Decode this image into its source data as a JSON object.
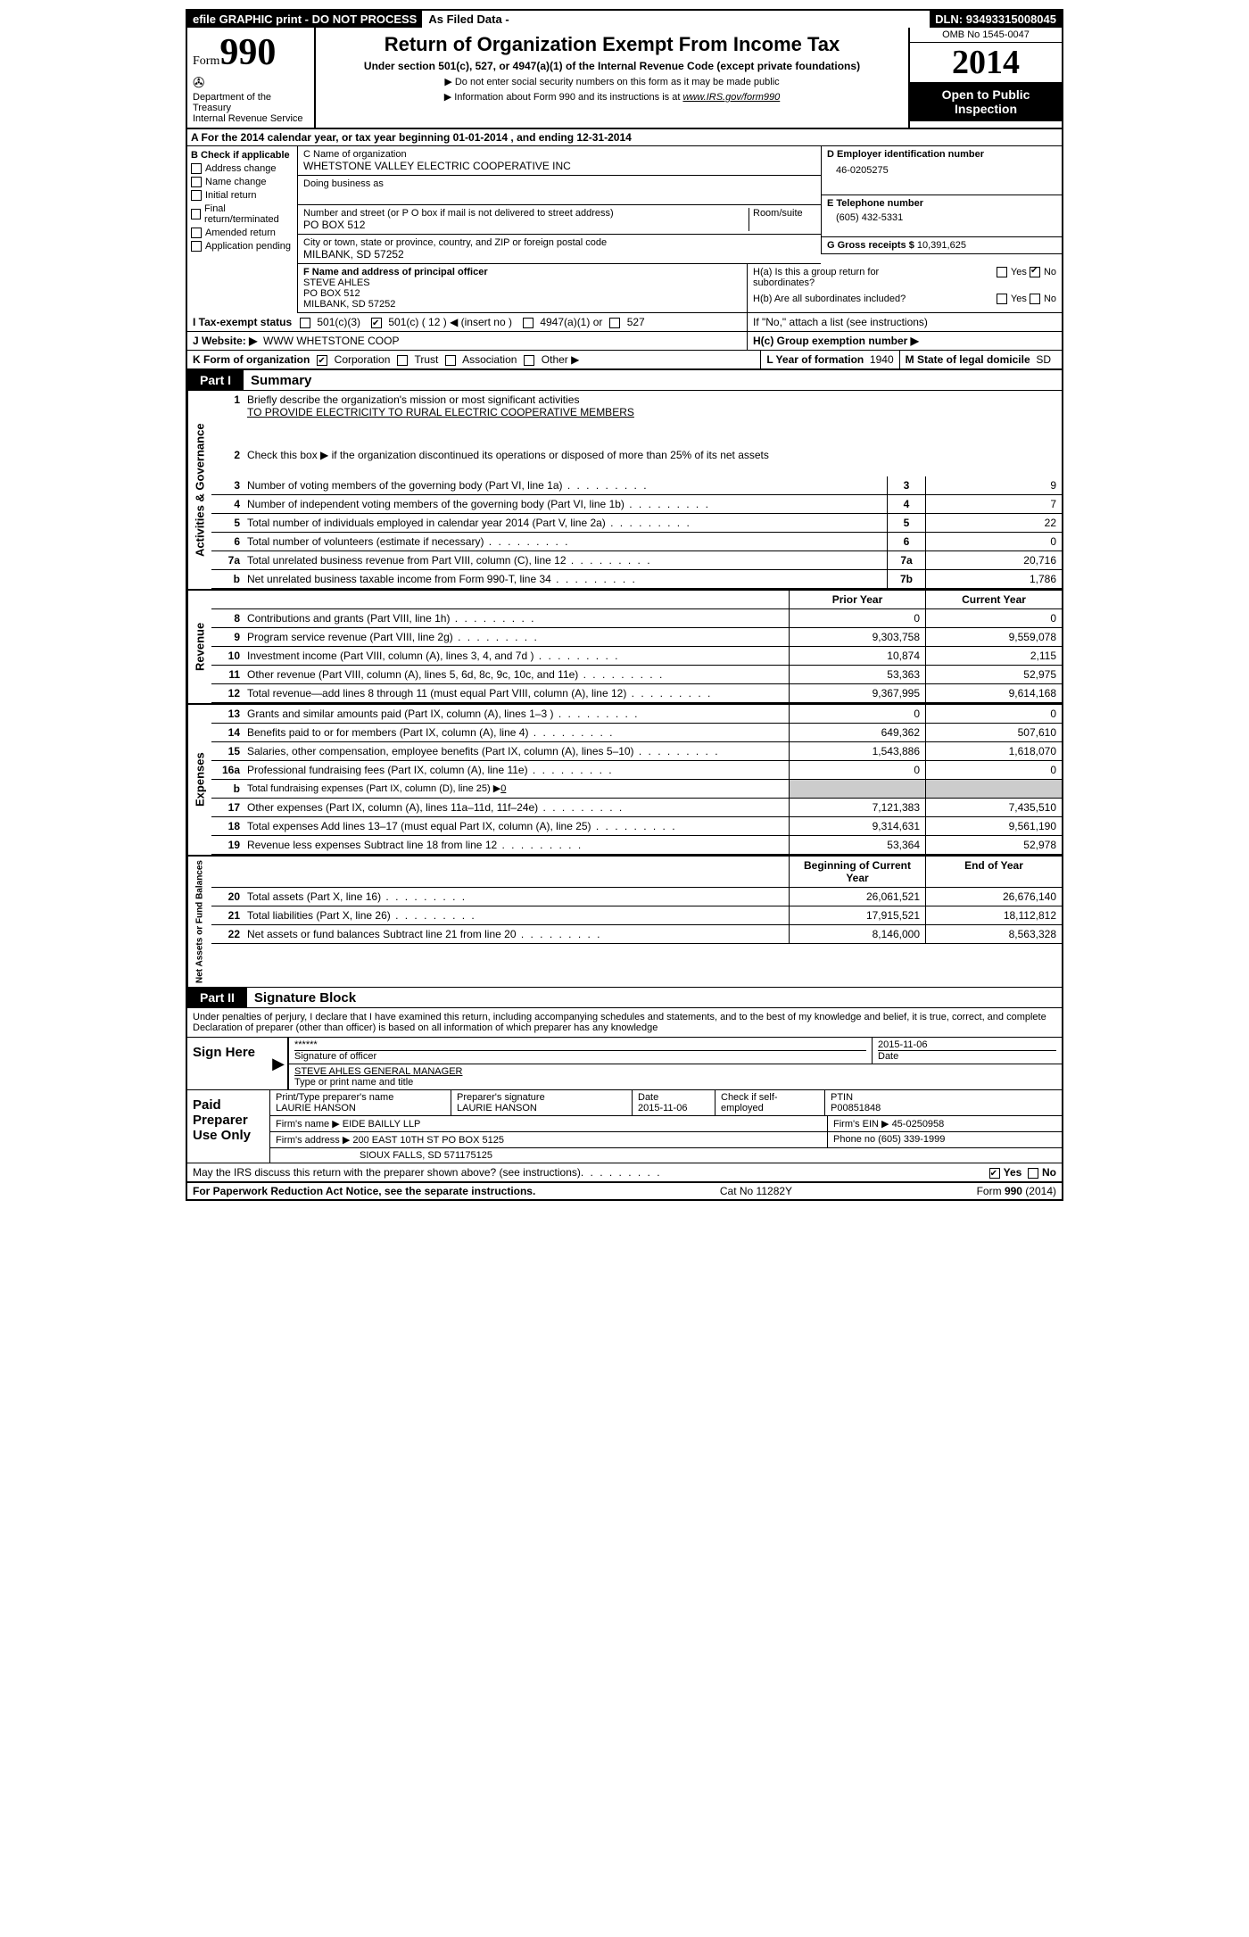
{
  "topbar": {
    "efile": "efile GRAPHIC print - DO NOT PROCESS",
    "asfiled": "As Filed Data -",
    "dln_label": "DLN:",
    "dln": "93493315008045"
  },
  "header": {
    "form_word": "Form",
    "form_num": "990",
    "dept1": "Department of the Treasury",
    "dept2": "Internal Revenue Service",
    "title": "Return of Organization Exempt From Income Tax",
    "subtitle": "Under section 501(c), 527, or 4947(a)(1) of the Internal Revenue Code (except private foundations)",
    "note1": "▶ Do not enter social security numbers on this form as it may be made public",
    "note2_a": "▶ Information about Form 990 and its instructions is at ",
    "note2_link": "www.IRS.gov/form990",
    "omb": "OMB No 1545-0047",
    "year": "2014",
    "open": "Open to Public Inspection"
  },
  "a_line": {
    "pre": "A  For the 2014 calendar year, or tax year beginning ",
    "begin": "01-01-2014",
    "mid": ", and ending ",
    "end": "12-31-2014"
  },
  "b": {
    "label": "B  Check if applicable",
    "items": [
      "Address change",
      "Name change",
      "Initial return",
      "Final return/terminated",
      "Amended return",
      "Application pending"
    ]
  },
  "c": {
    "label": "C Name of organization",
    "name": "WHETSTONE VALLEY ELECTRIC COOPERATIVE INC",
    "dba_label": "Doing business as",
    "street_label": "Number and street (or P O  box if mail is not delivered to street address)",
    "room_label": "Room/suite",
    "street": "PO BOX 512",
    "city_label": "City or town, state or province, country, and ZIP or foreign postal code",
    "city": "MILBANK, SD  57252"
  },
  "d": {
    "label": "D Employer identification number",
    "val": "46-0205275"
  },
  "e": {
    "label": "E Telephone number",
    "val": "(605) 432-5331"
  },
  "g": {
    "label": "G Gross receipts $",
    "val": "10,391,625"
  },
  "f": {
    "label": "F   Name and address of principal officer",
    "l1": "STEVE AHLES",
    "l2": "PO BOX 512",
    "l3": "MILBANK, SD  57252"
  },
  "h": {
    "a": "H(a)  Is this a group return for subordinates?",
    "a_yes": "Yes",
    "a_no": "No",
    "b": "H(b)  Are all subordinates included?",
    "b_note": "If \"No,\" attach a list  (see instructions)",
    "c": "H(c)  Group exemption number ▶"
  },
  "i": {
    "label": "I   Tax-exempt status",
    "o1": "501(c)(3)",
    "o2": "501(c) ( 12 ) ◀ (insert no )",
    "o3": "4947(a)(1) or",
    "o4": "527"
  },
  "j": {
    "label": "J  Website: ▶",
    "val": "WWW WHETSTONE COOP"
  },
  "k": {
    "label": "K Form of organization",
    "o1": "Corporation",
    "o2": "Trust",
    "o3": "Association",
    "o4": "Other ▶"
  },
  "l": {
    "label": "L Year of formation",
    "val": "1940"
  },
  "m": {
    "label": "M State of legal domicile",
    "val": "SD"
  },
  "part1": {
    "tab": "Part I",
    "label": "Summary"
  },
  "gov": {
    "vlabel": "Activities & Governance",
    "l1_a": "Briefly describe the organization's mission or most significant activities",
    "l1_b": "TO PROVIDE ELECTRICITY TO RURAL ELECTRIC COOPERATIVE MEMBERS",
    "l2": "Check this box ▶     if the organization discontinued its operations or disposed of more than 25% of its net assets",
    "rows": [
      {
        "n": "3",
        "d": "Number of voting members of the governing body (Part VI, line 1a)",
        "k": "3",
        "v": "9"
      },
      {
        "n": "4",
        "d": "Number of independent voting members of the governing body (Part VI, line 1b)",
        "k": "4",
        "v": "7"
      },
      {
        "n": "5",
        "d": "Total number of individuals employed in calendar year 2014 (Part V, line 2a)",
        "k": "5",
        "v": "22"
      },
      {
        "n": "6",
        "d": "Total number of volunteers (estimate if necessary)",
        "k": "6",
        "v": "0"
      },
      {
        "n": "7a",
        "d": "Total unrelated business revenue from Part VIII, column (C), line 12",
        "k": "7a",
        "v": "20,716"
      },
      {
        "n": "b",
        "d": "Net unrelated business taxable income from Form 990-T, line 34",
        "k": "7b",
        "v": "1,786"
      }
    ]
  },
  "cols": {
    "py": "Prior Year",
    "cy": "Current Year"
  },
  "rev": {
    "vlabel": "Revenue",
    "rows": [
      {
        "n": "8",
        "d": "Contributions and grants (Part VIII, line 1h)",
        "py": "0",
        "cy": "0"
      },
      {
        "n": "9",
        "d": "Program service revenue (Part VIII, line 2g)",
        "py": "9,303,758",
        "cy": "9,559,078"
      },
      {
        "n": "10",
        "d": "Investment income (Part VIII, column (A), lines 3, 4, and 7d )",
        "py": "10,874",
        "cy": "2,115"
      },
      {
        "n": "11",
        "d": "Other revenue (Part VIII, column (A), lines 5, 6d, 8c, 9c, 10c, and 11e)",
        "py": "53,363",
        "cy": "52,975"
      },
      {
        "n": "12",
        "d": "Total revenue—add lines 8 through 11 (must equal Part VIII, column (A), line 12)",
        "py": "9,367,995",
        "cy": "9,614,168"
      }
    ]
  },
  "exp": {
    "vlabel": "Expenses",
    "rows": [
      {
        "n": "13",
        "d": "Grants and similar amounts paid (Part IX, column (A), lines 1–3 )",
        "py": "0",
        "cy": "0"
      },
      {
        "n": "14",
        "d": "Benefits paid to or for members (Part IX, column (A), line 4)",
        "py": "649,362",
        "cy": "507,610"
      },
      {
        "n": "15",
        "d": "Salaries, other compensation, employee benefits (Part IX, column (A), lines 5–10)",
        "py": "1,543,886",
        "cy": "1,618,070"
      },
      {
        "n": "16a",
        "d": "Professional fundraising fees (Part IX, column (A), line 11e)",
        "py": "0",
        "cy": "0"
      }
    ],
    "b_line": {
      "n": "b",
      "d": "Total fundraising expenses (Part IX, column (D), line 25) ▶",
      "val": "0"
    },
    "rows2": [
      {
        "n": "17",
        "d": "Other expenses (Part IX, column (A), lines 11a–11d, 11f–24e)",
        "py": "7,121,383",
        "cy": "7,435,510"
      },
      {
        "n": "18",
        "d": "Total expenses  Add lines 13–17 (must equal Part IX, column (A), line 25)",
        "py": "9,314,631",
        "cy": "9,561,190"
      },
      {
        "n": "19",
        "d": "Revenue less expenses  Subtract line 18 from line 12",
        "py": "53,364",
        "cy": "52,978"
      }
    ]
  },
  "net": {
    "vlabel": "Net Assets or Fund Balances",
    "h1": "Beginning of Current Year",
    "h2": "End of Year",
    "rows": [
      {
        "n": "20",
        "d": "Total assets (Part X, line 16)",
        "py": "26,061,521",
        "cy": "26,676,140"
      },
      {
        "n": "21",
        "d": "Total liabilities (Part X, line 26)",
        "py": "17,915,521",
        "cy": "18,112,812"
      },
      {
        "n": "22",
        "d": "Net assets or fund balances  Subtract line 21 from line 20",
        "py": "8,146,000",
        "cy": "8,563,328"
      }
    ]
  },
  "part2": {
    "tab": "Part II",
    "label": "Signature Block"
  },
  "sig": {
    "decl": "Under penalties of perjury, I declare that I have examined this return, including accompanying schedules and statements, and to the best of my knowledge and belief, it is true, correct, and complete  Declaration of preparer (other than officer) is based on all information of which preparer has any knowledge",
    "sign_here": "Sign Here",
    "stars": "******",
    "sig_of": "Signature of officer",
    "date_label": "Date",
    "date1": "2015-11-06",
    "name": "STEVE AHLES GENERAL MANAGER",
    "name_label": "Type or print name and title",
    "paid": "Paid Preparer Use Only",
    "prep_name_label": "Print/Type preparer's name",
    "prep_name": "LAURIE HANSON",
    "prep_sig_label": "Preparer's signature",
    "prep_sig": "LAURIE HANSON",
    "date2": "2015-11-06",
    "self_emp": "Check       if self-employed",
    "ptin_label": "PTIN",
    "ptin": "P00851848",
    "firm_name_label": "Firm's name    ▶",
    "firm_name": "EIDE BAILLY LLP",
    "firm_ein_label": "Firm's EIN ▶",
    "firm_ein": "45-0250958",
    "firm_addr_label": "Firm's address ▶",
    "firm_addr": "200 EAST 10TH ST PO BOX 5125",
    "firm_city": "SIOUX FALLS, SD  571175125",
    "phone_label": "Phone no",
    "phone": "(605) 339-1999",
    "discuss": "May the IRS discuss this return with the preparer shown above? (see instructions)",
    "yes": "Yes",
    "no": "No"
  },
  "footer": {
    "left": "For Paperwork Reduction Act Notice, see the separate instructions.",
    "mid": "Cat No 11282Y",
    "right": "Form 990 (2014)"
  }
}
